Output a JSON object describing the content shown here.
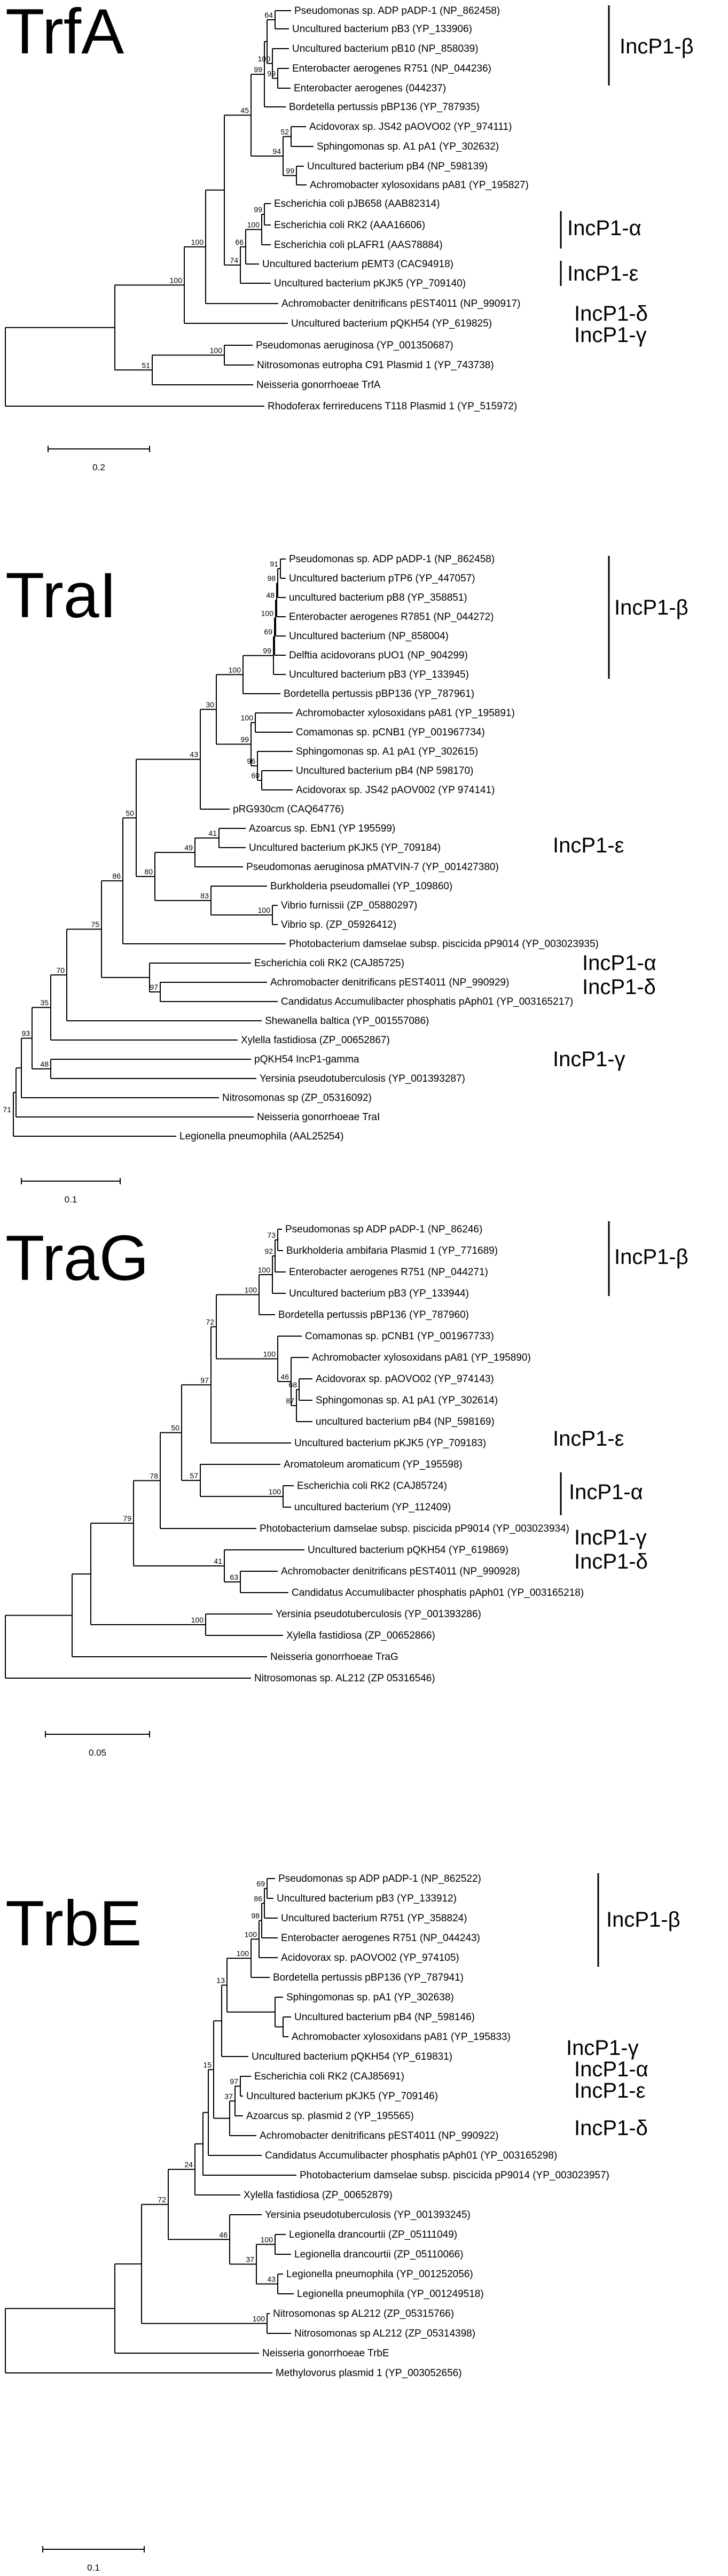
{
  "panels": [
    {
      "title": "TrfA",
      "scale": "0.2",
      "groups": [
        {
          "label": "IncP1-β"
        },
        {
          "label": "IncP1-α"
        },
        {
          "label": "IncP1-ε"
        },
        {
          "label": "IncP1-δ"
        },
        {
          "label": "IncP1-γ"
        }
      ],
      "leaves": [
        "Pseudomonas sp. ADP pADP-1 (NP_862458)",
        "Uncultured bacterium pB3 (YP_133906)",
        "Uncultured bacterium pB10 (NP_858039)",
        "Enterobacter aerogenes R751 (NP_044236)",
        "Enterobacter aerogenes (044237)",
        "Bordetella pertussis pBP136 (YP_787935)",
        "Acidovorax sp. JS42 pAOVO02 (YP_974111)",
        "Sphingomonas sp. A1 pA1 (YP_302632)",
        "Uncultured bacterium pB4 (NP_598139)",
        "Achromobacter xylosoxidans pA81 (YP_195827)",
        "Escherichia coli pJB658 (AAB82314)",
        "Escherichia coli RK2 (AAA16606)",
        "Escherichia coli pLAFR1 (AAS78884)",
        "Uncultured bacterium pEMT3 (CAC94918)",
        "Uncultured bacterium pKJK5 (YP_709140)",
        "Achromobacter denitrificans pEST4011 (NP_990917)",
        "Uncultured bacterium pQKH54 (YP_619825)",
        "Pseudomonas aeruginosa (YP_001350687)",
        "Nitrosomonas eutropha C91 Plasmid 1 (YP_743738)",
        "Neisseria gonorrhoeae TrfA",
        "Rhodoferax ferrireducens T118 Plasmid 1 (YP_515972)"
      ],
      "bootstraps": [
        "64",
        "100",
        "99",
        "99",
        "52",
        "99",
        "94",
        "45",
        "99",
        "66",
        "100",
        "74",
        "100",
        "100",
        "51"
      ]
    },
    {
      "title": "TraI",
      "scale": "0.1",
      "groups": [
        {
          "label": "IncP1-β"
        },
        {
          "label": "IncP1-ε"
        },
        {
          "label": "IncP1-α"
        },
        {
          "label": "IncP1-δ"
        },
        {
          "label": "IncP1-γ"
        }
      ],
      "leaves": [
        "Pseudomonas sp. ADP pADP-1 (NP_862458)",
        "Uncultured bacterium pTP6 (YP_447057)",
        "uncultured bacterium pB8 (YP_358851)",
        "Enterobacter aerogenes R7851 (NP_044272)",
        "Uncultured bacterium (NP_858004)",
        "Delftia acidovorans pUO1 (NP_904299)",
        "Uncultured bacterium pB3 (YP_133945)",
        "Bordetella pertussis pBP136 (YP_787961)",
        "Achromobacter xylosoxidans pA81 (YP_195891)",
        "Comamonas sp. pCNB1 (YP_001967734)",
        "Sphingomonas sp. A1 pA1 (YP_302615)",
        "Uncultured bacterium pB4 (NP 598170)",
        "Acidovorax sp. JS42 pAOV002 (YP 974141)",
        "pRG930cm (CAQ64776)",
        "Azoarcus sp. EbN1 (YP 195599)",
        "Uncultured bacterium pKJK5 (YP_709184)",
        "Pseudomonas aeruginosa pMATVIN-7 (YP_001427380)",
        "Burkholderia pseudomallei (YP_109860)",
        "Vibrio furnissii (ZP_05880297)",
        "Vibrio sp. (ZP_05926412)",
        "Photobacterium damselae subsp. piscicida pP9014 (YP_003023935)",
        "Escherichia coli RK2 (CAJ85725)",
        "Achromobacter denitrificans pEST4011 (NP_990929)",
        "Candidatus Accumulibacter phosphatis pAph01 (YP_003165217)",
        "Shewanella baltica (YP_001557086)",
        "Xylella fastidiosa (ZP_00652867)",
        "pQKH54 IncP1-gamma",
        "Yersinia pseudotuberculosis (YP_001393287)",
        "Nitrosomonas sp (ZP_05316092)",
        "Neisseria gonorrhoeae TraI",
        "Legionella pneumophila (AAL25254)"
      ],
      "bootstraps": [
        "91",
        "98",
        "48",
        "100",
        "69",
        "99",
        "100",
        "99",
        "100",
        "60",
        "96",
        "30",
        "43",
        "49",
        "41",
        "80",
        "100",
        "83",
        "50",
        "86",
        "75",
        "97",
        "70",
        "35",
        "93",
        "48",
        "71"
      ]
    },
    {
      "title": "TraG",
      "scale": "0.05",
      "groups": [
        {
          "label": "IncP1-β"
        },
        {
          "label": "IncP1-ε"
        },
        {
          "label": "IncP1-α"
        },
        {
          "label": "IncP1-γ"
        },
        {
          "label": "IncP1-δ"
        }
      ],
      "leaves": [
        "Pseudomonas sp ADP pADP-1 (NP_86246)",
        "Burkholderia ambifaria Plasmid 1 (YP_771689)",
        "Enterobacter aerogenes R751 (NP_044271)",
        "Uncultured bacterium pB3 (YP_133944)",
        "Bordetella pertussis pBP136 (YP_787960)",
        "Comamonas sp. pCNB1 (YP_001967733)",
        "Achromobacter xylosoxidans pA81 (YP_195890)",
        "Acidovorax sp. pAOVO02 (YP_974143)",
        "Sphingomonas sp. A1 pA1 (YP_302614)",
        "uncultured bacterium pB4 (NP_598169)",
        "Uncultured bacterium pKJK5 (YP_709183)",
        "Aromatoleum aromaticum (YP_195598)",
        "Escherichia coli RK2 (CAJ85724)",
        "uncultured bacterium (YP_112409)",
        "Photobacterium damselae subsp. piscicida pP9014 (YP_003023934)",
        "Uncultured bacterium pQKH54 (YP_619869)",
        "Achromobacter denitrificans pEST4011 (NP_990928)",
        "Candidatus Accumulibacter phosphatis pAph01 (YP_003165218)",
        "Yersinia pseudotuberculosis (YP_001393286)",
        "Xylella fastidiosa (ZP_00652866)",
        "Neisseria gonorrhoeae TraG",
        "Nitrosomonas sp. AL212 (ZP 05316546)"
      ],
      "bootstraps": [
        "73",
        "92",
        "100",
        "100",
        "100",
        "68",
        "87",
        "46",
        "72",
        "97",
        "57",
        "100",
        "50",
        "78",
        "41",
        "63",
        "79",
        "100"
      ]
    },
    {
      "title": "TrbE",
      "scale": "0.1",
      "groups": [
        {
          "label": "IncP1-β"
        },
        {
          "label": "IncP1-γ"
        },
        {
          "label": "IncP1-α"
        },
        {
          "label": "IncP1-ε"
        },
        {
          "label": "IncP1-δ"
        }
      ],
      "leaves": [
        "Pseudomonas sp ADP pADP-1 (NP_862522)",
        "Uncultured bacterium pB3 (YP_133912)",
        "Uncultured bacterium R751 (YP_358824)",
        "Enterobacter aerogenes R751 (NP_044243)",
        "Acidovorax sp. pAOVO02 (YP_974105)",
        "Bordetella pertussis pBP136 (YP_787941)",
        "Sphingomonas sp. pA1 (YP_302638)",
        "Uncultured bacterium pB4 (NP_598146)",
        "Achromobacter xylosoxidans pA81 (YP_195833)",
        "Uncultured bacterium pQKH54 (YP_619831)",
        "Escherichia coli RK2 (CAJ85691)",
        "Uncultured bacterium pKJK5 (YP_709146)",
        "Azoarcus sp. plasmid 2 (YP_195565)",
        "Achromobacter denitrificans pEST4011 (NP_990922)",
        "Candidatus Accumulibacter phosphatis pAph01 (YP_003165298)",
        "Photobacterium damselae subsp. piscicida pP9014 (YP_003023957)",
        "Xylella fastidiosa (ZP_00652879)",
        "Yersinia pseudotuberculosis (YP_001393245)",
        "Legionella drancourtii (ZP_05111049)",
        "Legionella drancourtii (ZP_05110066)",
        "Legionella pneumophila (YP_001252056)",
        "Legionella pneumophila (YP_001249518)",
        "Nitrosomonas sp AL212 (ZP_05315766)",
        "Nitrosomonas sp AL212 (ZP_05314398)",
        "Neisseria gonorrhoeae TrbE",
        "Methylovorus plasmid 1 (YP_003052656)"
      ],
      "bootstraps": [
        "69",
        "86",
        "98",
        "100",
        "100",
        "13",
        "15",
        "97",
        "37",
        "24",
        "46",
        "100",
        "37",
        "100",
        "43",
        "72",
        "100"
      ]
    }
  ]
}
